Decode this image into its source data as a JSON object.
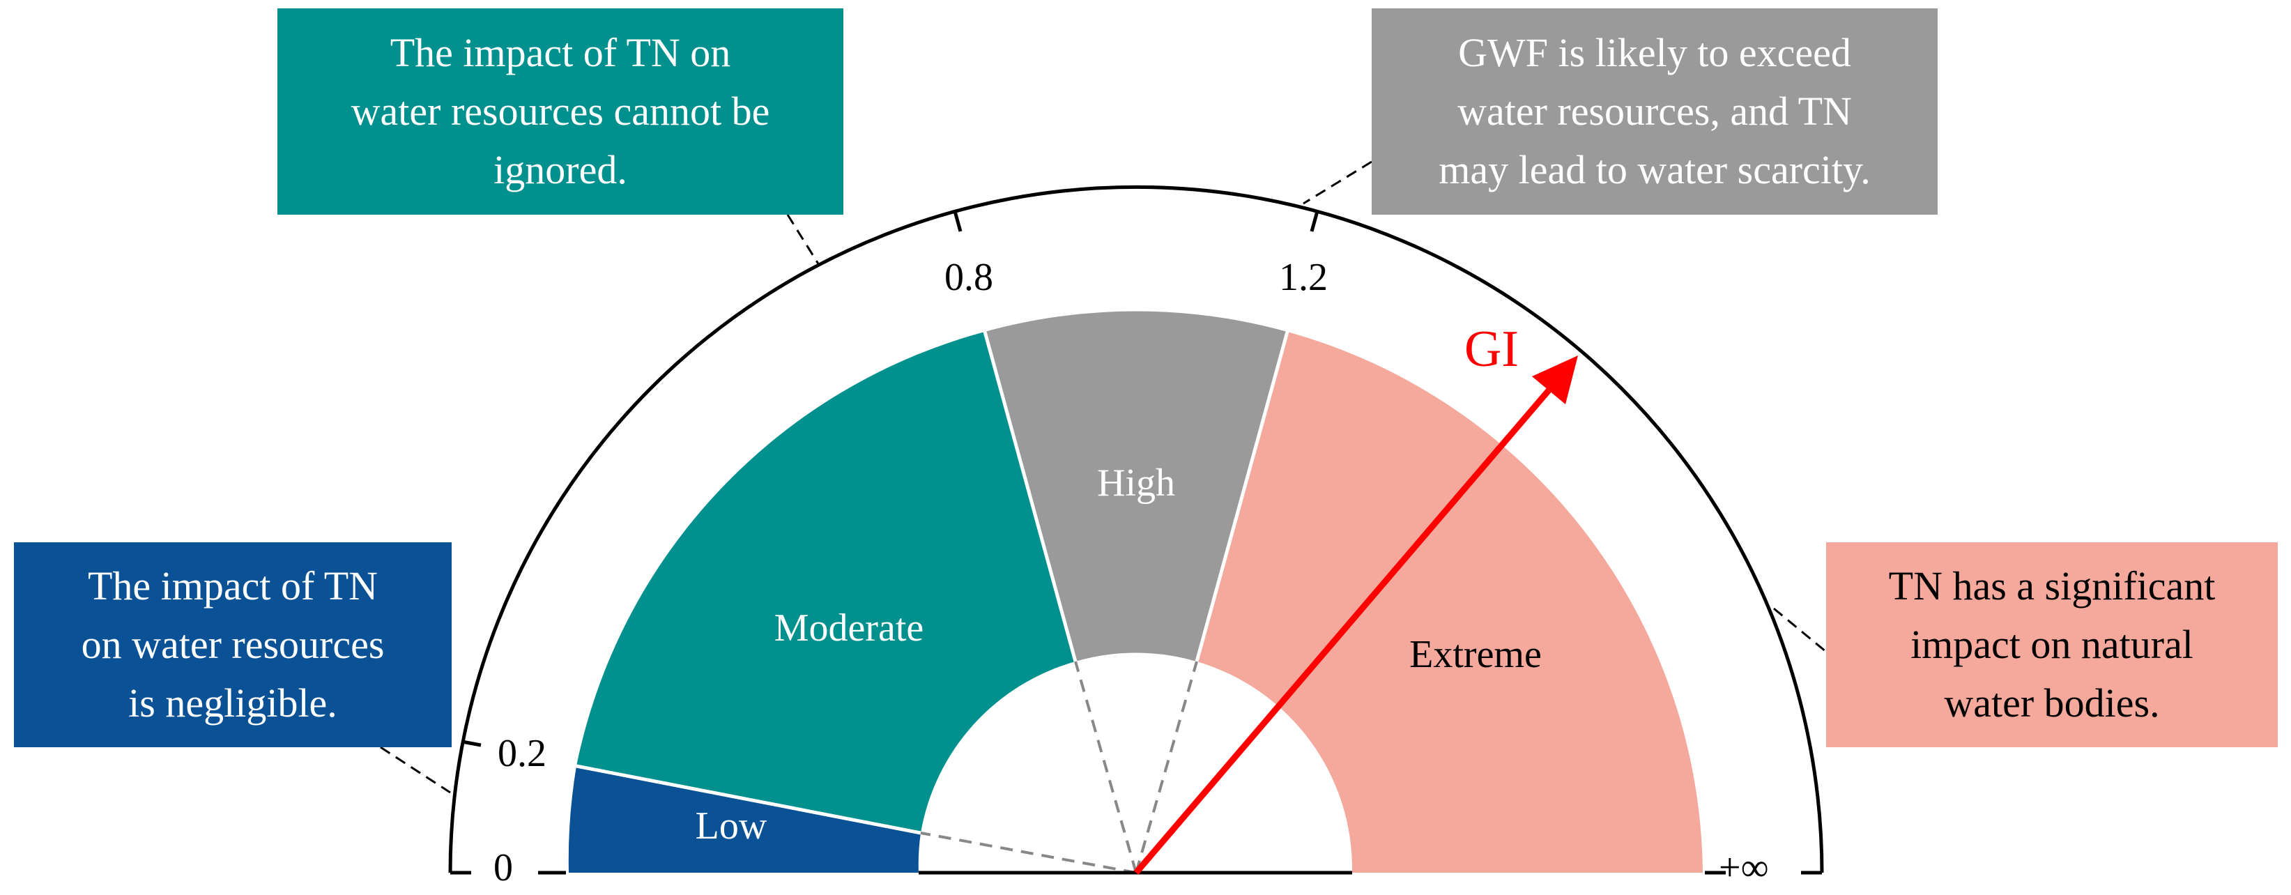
{
  "gauge": {
    "zones": [
      {
        "label": "Low",
        "color": "#0a5196",
        "text_color": "#ffffff"
      },
      {
        "label": "Moderate",
        "color": "#00918e",
        "text_color": "#ffffff"
      },
      {
        "label": "High",
        "color": "#9a9a9a",
        "text_color": "#ffffff"
      },
      {
        "label": "Extreme",
        "color": "#f4a99c",
        "text_color": "#000000"
      }
    ],
    "ticks": {
      "zero": "0",
      "t02": "0.2",
      "t08": "0.8",
      "t12": "1.2",
      "inf": "+∞"
    },
    "pointer": {
      "label": "GI",
      "color": "#ff0000"
    }
  },
  "callouts": {
    "low": {
      "text": "The impact of TN\non water resources\nis negligible.",
      "bg": "#0a5196",
      "fg": "#ffffff"
    },
    "moderate": {
      "text": "The impact of TN on\nwater resources cannot be\nignored.",
      "bg": "#00918e",
      "fg": "#ffffff"
    },
    "high": {
      "text": "GWF is likely to exceed\nwater resources, and TN\nmay lead to water scarcity.",
      "bg": "#9a9a9a",
      "fg": "#ffffff"
    },
    "extreme": {
      "text": "TN has a significant\nimpact on natural\nwater bodies.",
      "bg": "#f4a99c",
      "fg": "#000000"
    }
  }
}
